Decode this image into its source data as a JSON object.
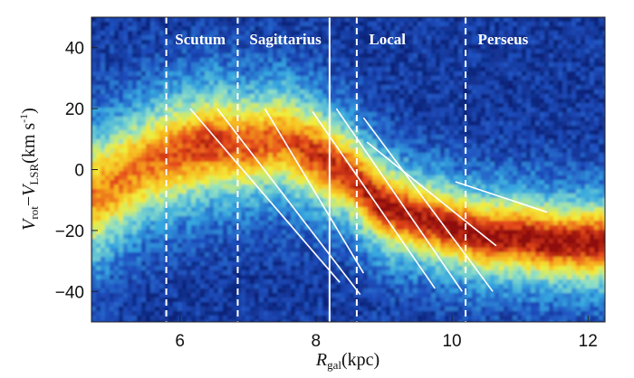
{
  "chart_data": {
    "type": "heatmap",
    "title": "",
    "xlabel": {
      "main": "R",
      "sub": "gal",
      "unit": "(kpc)"
    },
    "ylabel": {
      "a_main": "V",
      "a_sub": "rot",
      "minus": "−",
      "b_main": "V",
      "b_sub": "LSR",
      "unit": "(km s",
      "unit_exp": "-1",
      "unit_close": ")"
    },
    "xlim": [
      4.7,
      12.25
    ],
    "ylim": [
      -50,
      50
    ],
    "x_ticks": [
      6,
      8,
      10,
      12
    ],
    "y_ticks": [
      40,
      20,
      0,
      -20,
      -40
    ],
    "x_tick_labels": [
      "6",
      "8",
      "10",
      "12"
    ],
    "y_tick_labels": [
      "40",
      "20",
      "0",
      "−20",
      "−40"
    ],
    "colormap": [
      "#0a1f73",
      "#1f4fbf",
      "#35a6e0",
      "#8fe0c6",
      "#f2ee3a",
      "#f7b21e",
      "#e4461a",
      "#8e0a0a"
    ],
    "ridge": {
      "x": [
        4.8,
        5.5,
        6.0,
        6.5,
        7.0,
        7.5,
        8.0,
        8.5,
        9.0,
        9.5,
        10.0,
        10.5,
        11.0,
        11.5,
        12.2
      ],
      "y": [
        -8,
        2,
        6,
        9,
        8,
        10,
        5,
        -2,
        -12,
        -16,
        -19,
        -22,
        -22,
        -24,
        -24
      ],
      "width": [
        15,
        14,
        14,
        14,
        13,
        13,
        13,
        12,
        12,
        11,
        11,
        11,
        11,
        11,
        11
      ],
      "peak": [
        0.45,
        0.52,
        0.62,
        0.72,
        0.62,
        0.58,
        0.72,
        0.75,
        0.9,
        0.85,
        0.88,
        0.92,
        0.9,
        0.9,
        0.9
      ]
    },
    "arm_boundaries": [
      {
        "x": 5.8,
        "style": "dashed"
      },
      {
        "x": 6.85,
        "style": "dashed"
      },
      {
        "x": 8.2,
        "style": "solid"
      },
      {
        "x": 8.6,
        "style": "dashed"
      },
      {
        "x": 10.2,
        "style": "dashed"
      }
    ],
    "arm_labels": [
      {
        "text": "Scutum",
        "x": 6.3
      },
      {
        "text": "Sagittarius",
        "x": 7.55
      },
      {
        "text": "Local",
        "x": 9.05
      },
      {
        "text": "Perseus",
        "x": 10.75
      }
    ],
    "fit_lines": [
      {
        "x": [
          6.15,
          8.35
        ],
        "y": [
          20,
          -37
        ]
      },
      {
        "x": [
          6.55,
          8.65
        ],
        "y": [
          20,
          -41
        ]
      },
      {
        "x": [
          7.25,
          8.7
        ],
        "y": [
          20,
          -34
        ]
      },
      {
        "x": [
          7.95,
          9.75
        ],
        "y": [
          19,
          -39
        ]
      },
      {
        "x": [
          8.3,
          10.15
        ],
        "y": [
          20,
          -40
        ]
      },
      {
        "x": [
          8.7,
          10.6
        ],
        "y": [
          17,
          -40
        ]
      },
      {
        "x": [
          8.75,
          10.65
        ],
        "y": [
          9,
          -25
        ]
      },
      {
        "x": [
          10.05,
          11.4
        ],
        "y": [
          -4,
          -14
        ]
      }
    ]
  }
}
